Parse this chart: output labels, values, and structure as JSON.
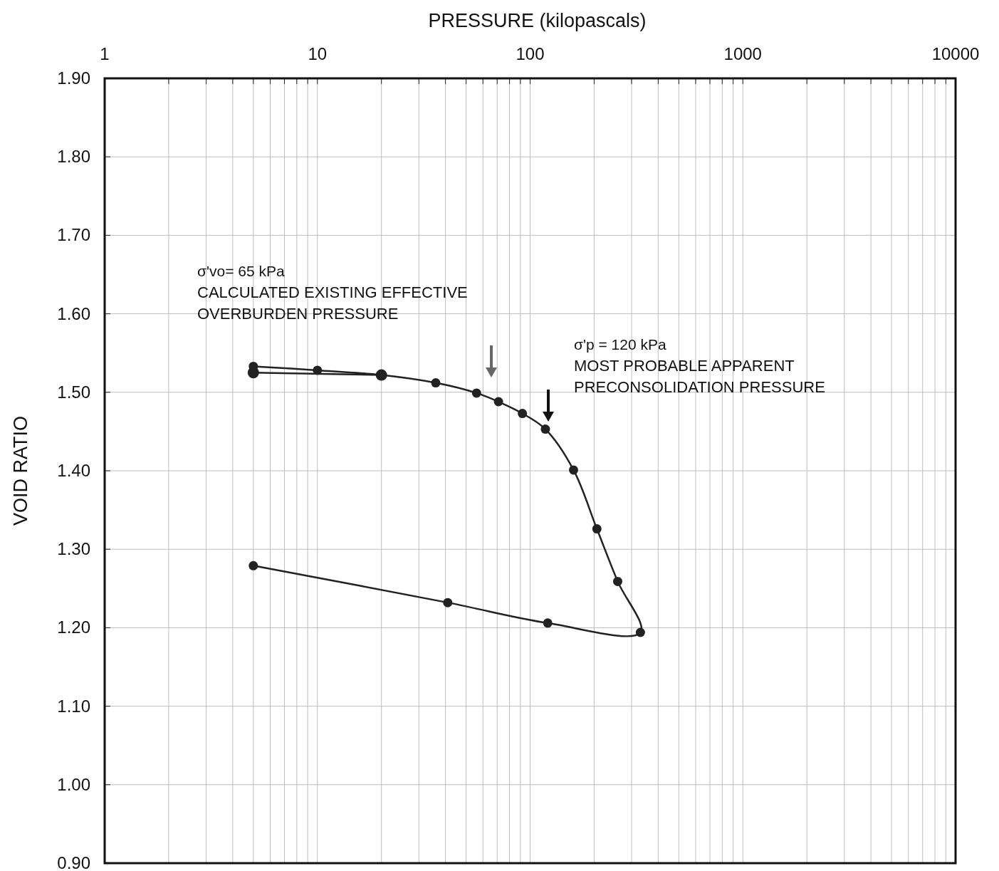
{
  "chart_data": {
    "type": "line",
    "xlabel": "PRESSURE (kilopascals)",
    "ylabel": "VOID RATIO",
    "log": "x",
    "grid": true,
    "marker": "circle",
    "line_style": "solid",
    "xlim": [
      1,
      10000
    ],
    "ylim": [
      0.9,
      1.9
    ],
    "xticks": [
      1,
      {
        "value": 2,
        "label": null
      },
      {
        "value": 3,
        "label": null
      },
      {
        "value": 4,
        "label": null
      },
      {
        "value": 5,
        "label": null
      },
      {
        "value": 6,
        "label": null
      },
      {
        "value": 7,
        "label": null
      },
      {
        "value": 8,
        "label": null
      },
      {
        "value": 9,
        "label": null
      },
      10,
      {
        "value": 20,
        "label": null
      },
      {
        "value": 30,
        "label": null
      },
      {
        "value": 40,
        "label": null
      },
      {
        "value": 50,
        "label": null
      },
      {
        "value": 60,
        "label": null
      },
      {
        "value": 70,
        "label": null
      },
      {
        "value": 80,
        "label": null
      },
      {
        "value": 90,
        "label": null
      },
      100,
      {
        "value": 200,
        "label": null
      },
      {
        "value": 300,
        "label": null
      },
      {
        "value": 400,
        "label": null
      },
      {
        "value": 500,
        "label": null
      },
      {
        "value": 600,
        "label": null
      },
      {
        "value": 700,
        "label": null
      },
      {
        "value": 800,
        "label": null
      },
      {
        "value": 900,
        "label": null
      },
      1000,
      {
        "value": 2000,
        "label": null
      },
      {
        "value": 3000,
        "label": null
      },
      {
        "value": 4000,
        "label": null
      },
      {
        "value": 5000,
        "label": null
      },
      {
        "value": 6000,
        "label": null
      },
      {
        "value": 7000,
        "label": null
      },
      {
        "value": 8000,
        "label": null
      },
      {
        "value": 9000,
        "label": null
      },
      10000
    ],
    "yticks": [
      {
        "value": 0.9,
        "label": "0.90"
      },
      {
        "value": 1.0,
        "label": "1.00"
      },
      {
        "value": 1.1,
        "label": "1.10"
      },
      {
        "value": 1.2,
        "label": "1.20"
      },
      {
        "value": 1.3,
        "label": "1.30"
      },
      {
        "value": 1.4,
        "label": "1.40"
      },
      {
        "value": 1.5,
        "label": "1.50"
      },
      {
        "value": 1.6,
        "label": "1.60"
      },
      {
        "value": 1.7,
        "label": "1.70"
      },
      {
        "value": 1.8,
        "label": "1.80"
      },
      {
        "value": 1.9,
        "label": "1.90"
      }
    ],
    "series": [
      {
        "color": "#222222",
        "x": [
          5,
          10,
          20,
          36,
          56,
          71,
          92,
          118,
          160,
          206,
          258,
          330,
          121,
          41,
          5
        ],
        "values": [
          1.533,
          1.528,
          1.522,
          1.512,
          1.499,
          1.488,
          1.473,
          1.453,
          1.401,
          1.326,
          1.259,
          1.194,
          1.206,
          1.232,
          1.279
        ]
      },
      {
        "color": "#222222",
        "x": [
          5,
          20
        ],
        "values": [
          1.525,
          1.522
        ]
      }
    ],
    "annotations": [
      "σ'vo= 65 kPa\nCALCULATED EXISTING EFFECTIVE\nOVERBURDEN PRESSURE",
      "σ'p = 120 kPa\nMOST PROBABLE APPARENT\nPRECONSOLIDATION PRESSURE"
    ]
  }
}
